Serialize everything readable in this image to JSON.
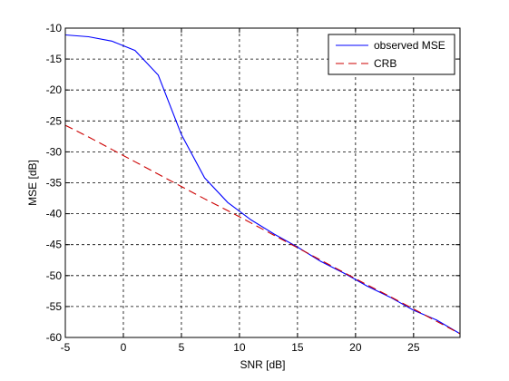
{
  "chart_data": {
    "type": "line",
    "xlabel": "SNR [dB]",
    "ylabel": "MSE [dB]",
    "xlim": [
      -5,
      29
    ],
    "ylim": [
      -60,
      -10
    ],
    "xticks": [
      -5,
      0,
      5,
      10,
      15,
      20,
      25
    ],
    "yticks": [
      -60,
      -55,
      -50,
      -45,
      -40,
      -35,
      -30,
      -25,
      -20,
      -15,
      -10
    ],
    "grid": true,
    "grid_style": "dashed",
    "legend_position": "top-right",
    "series": [
      {
        "name": "observed MSE",
        "color": "#0000ff",
        "line_style": "solid",
        "x": [
          -5,
          -3,
          -1,
          1,
          3,
          5,
          7,
          9,
          11,
          13,
          15,
          17,
          19,
          21,
          23,
          25,
          27,
          29
        ],
        "y": [
          -11.1,
          -11.4,
          -12.1,
          -13.6,
          -17.6,
          -27.2,
          -34.2,
          -38.2,
          -41.0,
          -43.3,
          -45.4,
          -47.7,
          -49.6,
          -51.7,
          -53.5,
          -55.6,
          -57.2,
          -59.4
        ]
      },
      {
        "name": "CRB",
        "color": "#cc0000",
        "line_style": "dashed",
        "x": [
          -5,
          -3,
          -1,
          1,
          3,
          5,
          7,
          9,
          11,
          13,
          15,
          17,
          19,
          21,
          23,
          25,
          27,
          29
        ],
        "y": [
          -25.7,
          -27.6,
          -29.6,
          -31.6,
          -33.6,
          -35.6,
          -37.6,
          -39.5,
          -41.5,
          -43.5,
          -45.5,
          -47.5,
          -49.5,
          -51.5,
          -53.4,
          -55.4,
          -57.4,
          -59.4
        ]
      }
    ]
  }
}
